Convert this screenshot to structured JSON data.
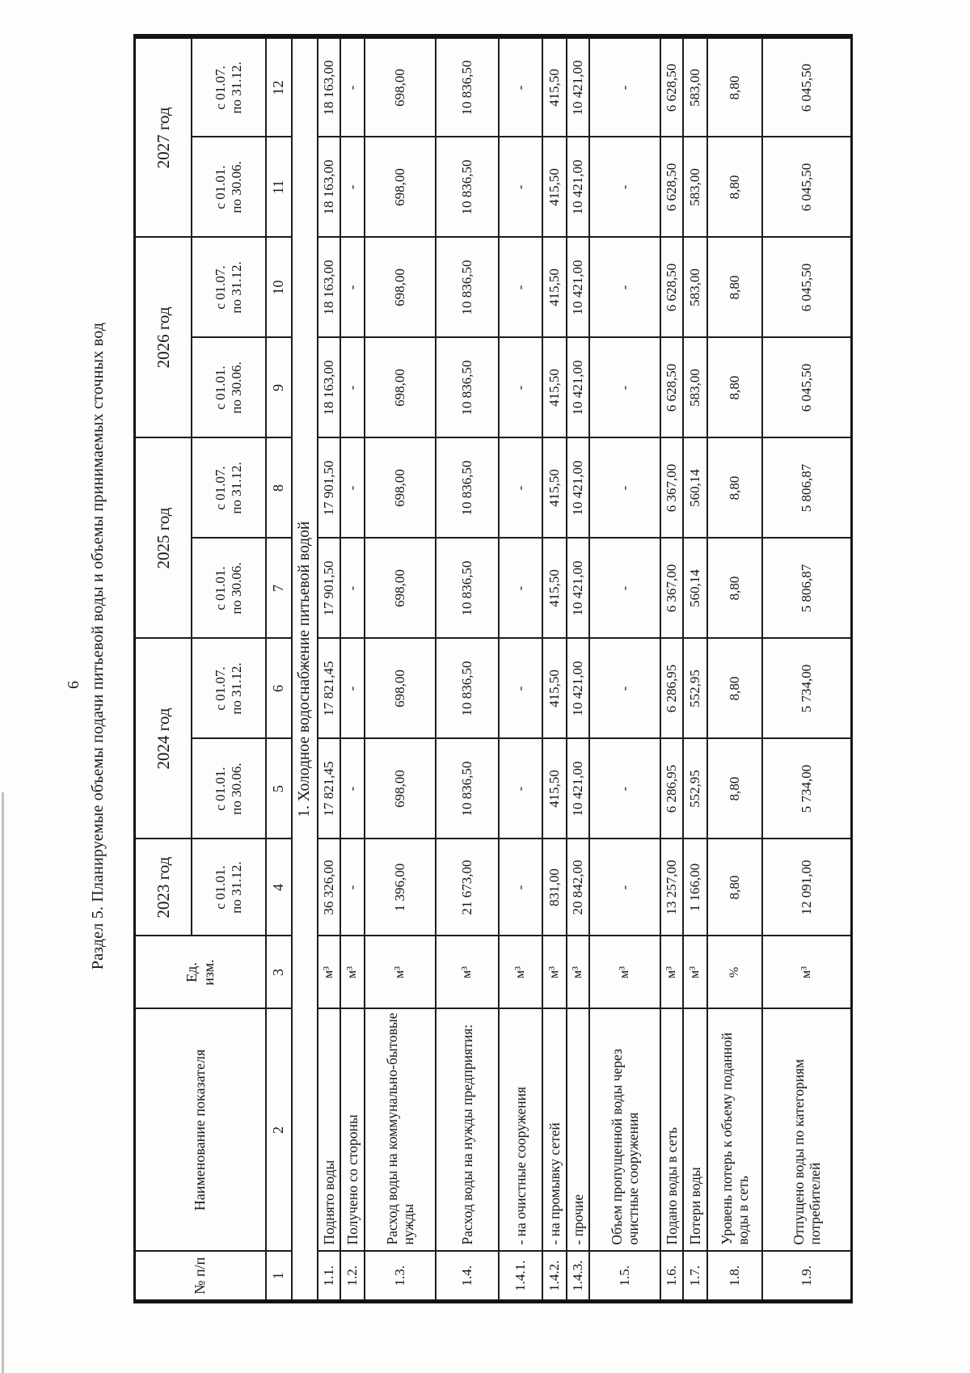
{
  "page": {
    "number": "6",
    "title": "Раздел 5. Планируемые объемы подачи питьевой воды и объемы принимаемых сточных вод"
  },
  "table": {
    "header": {
      "num_label": "№ п/п",
      "name_label": "Наименование показателя",
      "unit_label": "Ед.\nизм.",
      "years": [
        {
          "label": "2023 год",
          "periods": [
            "с 01.01.\nпо 31.12."
          ]
        },
        {
          "label": "2024 год",
          "periods": [
            "с 01.01.\nпо 30.06.",
            "с 01.07.\nпо 31.12."
          ]
        },
        {
          "label": "2025 год",
          "periods": [
            "с 01.01.\nпо 30.06.",
            "с 01.07.\nпо 31.12."
          ]
        },
        {
          "label": "2026 год",
          "periods": [
            "с 01.01.\nпо 30.06.",
            "с 01.07.\nпо 31.12."
          ]
        },
        {
          "label": "2027 год",
          "periods": [
            "с 01.01.\nпо 30.06.",
            "с 01.07.\nпо 31.12."
          ]
        }
      ],
      "col_numbers": [
        "1",
        "2",
        "3",
        "4",
        "5",
        "6",
        "7",
        "8",
        "9",
        "10",
        "11",
        "12"
      ]
    },
    "section_title": "1. Холодное водоснабжение питьевой водой",
    "rows": [
      {
        "num": "1.1.",
        "name": "Поднято воды",
        "unit": "м³",
        "values": [
          "36 326,00",
          "17 821,45",
          "17 821,45",
          "17 901,50",
          "17 901,50",
          "18 163,00",
          "18 163,00",
          "18 163,00",
          "18 163,00"
        ]
      },
      {
        "num": "1.2.",
        "name": "Получено со стороны",
        "unit": "м³",
        "values": [
          "-",
          "-",
          "-",
          "-",
          "-",
          "-",
          "-",
          "-",
          "-"
        ]
      },
      {
        "num": "1.3.",
        "name": "Расход воды на коммунально-бытовые нужды",
        "unit": "м³",
        "values": [
          "1 396,00",
          "698,00",
          "698,00",
          "698,00",
          "698,00",
          "698,00",
          "698,00",
          "698,00",
          "698,00"
        ]
      },
      {
        "num": "1.4.",
        "name": "Расход воды на нужды предприятия:",
        "unit": "м³",
        "values": [
          "21 673,00",
          "10 836,50",
          "10 836,50",
          "10 836,50",
          "10 836,50",
          "10 836,50",
          "10 836,50",
          "10 836,50",
          "10 836,50"
        ]
      },
      {
        "num": "1.4.1.",
        "name": "- на очистные сооружения",
        "unit": "м³",
        "values": [
          "-",
          "-",
          "-",
          "-",
          "-",
          "-",
          "-",
          "-",
          "-"
        ]
      },
      {
        "num": "1.4.2.",
        "name": "- на промывку сетей",
        "unit": "м³",
        "values": [
          "831,00",
          "415,50",
          "415,50",
          "415,50",
          "415,50",
          "415,50",
          "415,50",
          "415,50",
          "415,50"
        ]
      },
      {
        "num": "1.4.3.",
        "name": "- прочие",
        "unit": "м³",
        "values": [
          "20 842,00",
          "10 421,00",
          "10 421,00",
          "10 421,00",
          "10 421,00",
          "10 421,00",
          "10 421,00",
          "10 421,00",
          "10 421,00"
        ]
      },
      {
        "num": "1.5.",
        "name": "Объем пропущенной воды через очистные сооружения",
        "unit": "м³",
        "values": [
          "-",
          "-",
          "-",
          "-",
          "-",
          "-",
          "-",
          "-",
          "-"
        ]
      },
      {
        "num": "1.6.",
        "name": "Подано воды в сеть",
        "unit": "м³",
        "values": [
          "13 257,00",
          "6 286,95",
          "6 286,95",
          "6 367,00",
          "6 367,00",
          "6 628,50",
          "6 628,50",
          "6 628,50",
          "6 628,50"
        ]
      },
      {
        "num": "1.7.",
        "name": "Потери воды",
        "unit": "м³",
        "values": [
          "1 166,00",
          "552,95",
          "552,95",
          "560,14",
          "560,14",
          "583,00",
          "583,00",
          "583,00",
          "583,00"
        ]
      },
      {
        "num": "1.8.",
        "name": "Уровень потерь к объему поданной воды в сеть",
        "unit": "%",
        "values": [
          "8,80",
          "8,80",
          "8,80",
          "8,80",
          "8,80",
          "8,80",
          "8,80",
          "8,80",
          "8,80"
        ]
      },
      {
        "num": "1.9.",
        "name": "Отпущено воды по категориям потребителей",
        "unit": "м³",
        "values": [
          "12 091,00",
          "5 734,00",
          "5 734,00",
          "5 806,87",
          "5 806,87",
          "6 045,50",
          "6 045,50",
          "6 045,50",
          "6 045,50"
        ]
      }
    ]
  }
}
